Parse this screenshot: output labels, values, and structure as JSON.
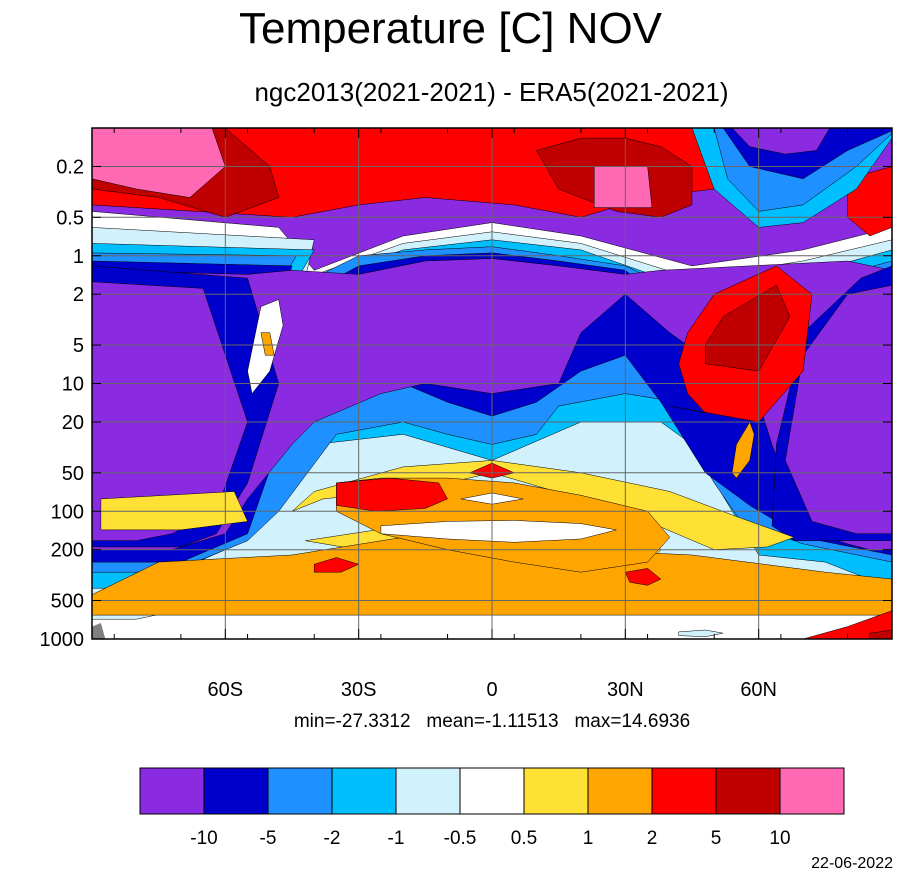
{
  "title": "Temperature [C] NOV",
  "subtitle": "ngc2013(2021-2021) - ERA5(2021-2021)",
  "stats": {
    "min_label": "min=-27.3312",
    "mean_label": "mean=-1.11513",
    "max_label": "max=14.6936"
  },
  "date_stamp": "22-06-2022",
  "chart_data": {
    "type": "heatmap",
    "y_scale": "log",
    "y_reversed": true,
    "xlim": [
      -90,
      90
    ],
    "ylim": [
      1000,
      0.1
    ],
    "x_ticks": [
      {
        "value": -60,
        "label": "60S"
      },
      {
        "value": -30,
        "label": "30S"
      },
      {
        "value": 0,
        "label": "0"
      },
      {
        "value": 30,
        "label": "30N"
      },
      {
        "value": 60,
        "label": "60N"
      }
    ],
    "y_ticks": [
      {
        "value": 0.2,
        "label": "0.2"
      },
      {
        "value": 0.5,
        "label": "0.5"
      },
      {
        "value": 1,
        "label": "1"
      },
      {
        "value": 2,
        "label": "2"
      },
      {
        "value": 5,
        "label": "5"
      },
      {
        "value": 10,
        "label": "10"
      },
      {
        "value": 20,
        "label": "20"
      },
      {
        "value": 50,
        "label": "50"
      },
      {
        "value": 100,
        "label": "100"
      },
      {
        "value": 200,
        "label": "200"
      },
      {
        "value": 500,
        "label": "500"
      },
      {
        "value": 1000,
        "label": "1000"
      }
    ],
    "grid": true,
    "missing_color": "#808080",
    "colorbar": {
      "placement": "bottom",
      "colors": [
        "#8a2be2",
        "#0000cd",
        "#1e90ff",
        "#00bfff",
        "#d1f2fd",
        "#ffffff",
        "#ffe135",
        "#ffa500",
        "#ff0000",
        "#c00000",
        "#ff69b4"
      ],
      "levels": [
        "-10",
        "-5",
        "-2",
        "-1",
        "-0.5",
        "0.5",
        "1",
        "2",
        "5",
        "10"
      ]
    },
    "regions": [
      {
        "level": 5,
        "lat": [
          -90,
          -48,
          -40,
          -20,
          0,
          20,
          45,
          70,
          90,
          90,
          -90
        ],
        "p": [
          0.45,
          0.6,
          1.3,
          0.7,
          0.55,
          0.7,
          1.2,
          0.9,
          0.6,
          1000,
          1000
        ]
      },
      {
        "level": 4,
        "lat": [
          -90,
          -40,
          -42,
          -20,
          0,
          20,
          45,
          70,
          90,
          90,
          75,
          60,
          38,
          20,
          0,
          -20,
          -40,
          -60,
          -80,
          -90
        ],
        "p": [
          0.6,
          0.75,
          1.5,
          0.8,
          0.65,
          0.8,
          1.5,
          1.1,
          0.75,
          600,
          400,
          300,
          250,
          200,
          150,
          160,
          300,
          500,
          700,
          700
        ]
      },
      {
        "level": 3,
        "lat": [
          -90,
          -40,
          -45,
          -20,
          0,
          20,
          45,
          70,
          90,
          90,
          75,
          60,
          45,
          38,
          20,
          0,
          -20,
          -40,
          -60,
          -80,
          -90
        ],
        "p": [
          0.8,
          0.9,
          1.8,
          0.9,
          0.75,
          0.9,
          1.8,
          1.4,
          0.9,
          400,
          250,
          220,
          30,
          20,
          20,
          40,
          25,
          30,
          200,
          400,
          400
        ]
      },
      {
        "level": 2,
        "lat": [
          -90,
          -44,
          -50,
          -30,
          -15,
          0,
          15,
          30,
          46,
          70,
          90,
          90,
          70,
          56,
          50,
          45,
          42,
          30,
          15,
          10,
          0,
          -10,
          -20,
          -35,
          -48,
          -55,
          -68,
          -80,
          -90
        ],
        "p": [
          0.95,
          1.0,
          2.2,
          1.0,
          0.9,
          0.85,
          1.0,
          1.2,
          2.2,
          1.7,
          1.1,
          250,
          180,
          120,
          60,
          30,
          14,
          12,
          15,
          25,
          30,
          25,
          20,
          25,
          100,
          170,
          260,
          300,
          300
        ]
      },
      {
        "level": 1,
        "lat": [
          -90,
          -45,
          -48,
          -30,
          -15,
          0,
          15,
          30,
          42,
          75,
          90,
          90,
          70,
          58,
          48,
          38,
          30,
          20,
          10,
          0,
          -10,
          -20,
          -35,
          -48,
          -55,
          -70,
          -90
        ],
        "p": [
          1.1,
          1.2,
          2.6,
          1.2,
          1.0,
          0.95,
          1.1,
          1.3,
          2.8,
          2.2,
          1.3,
          220,
          160,
          90,
          50,
          14,
          6,
          8,
          14,
          18,
          14,
          10,
          8,
          30,
          150,
          250,
          250
        ]
      },
      {
        "level": 0,
        "lat": [
          -90,
          -55,
          -45,
          -30,
          -15,
          0,
          15,
          30,
          38,
          80,
          90,
          90,
          85,
          80,
          70,
          63,
          60,
          52,
          40,
          30,
          20,
          15,
          0,
          -15,
          -25,
          -40,
          -45,
          -55,
          -60,
          -72,
          -90
        ],
        "p": [
          1.3,
          1.4,
          1.3,
          1.4,
          1.1,
          1.05,
          1.2,
          1.4,
          1.3,
          1.1,
          1.3,
          200,
          200,
          180,
          140,
          30,
          14,
          8,
          4,
          2,
          4,
          10,
          12,
          10,
          12,
          20,
          30,
          80,
          150,
          200,
          200
        ]
      },
      {
        "level": 1,
        "lat": [
          -90,
          -55,
          -48,
          -55,
          -62,
          -70,
          -90
        ],
        "p": [
          1.2,
          1.5,
          10,
          60,
          150,
          190,
          190
        ]
      },
      {
        "level": 1,
        "lat": [
          90,
          83,
          70,
          64,
          63,
          68,
          80,
          90
        ],
        "p": [
          1.2,
          1.5,
          4,
          30,
          130,
          170,
          170,
          170
        ]
      },
      {
        "level": 0,
        "lat": [
          -90,
          -65,
          -55,
          -62,
          -72,
          -80,
          -90
        ],
        "p": [
          1.6,
          1.8,
          20,
          100,
          150,
          170,
          170
        ]
      },
      {
        "level": 0,
        "lat": [
          90,
          80,
          70,
          66,
          72,
          82,
          90
        ],
        "p": [
          1.7,
          2.0,
          6,
          40,
          120,
          150,
          150
        ]
      },
      {
        "level": 6,
        "lat": [
          -88,
          -58,
          -55,
          -70,
          -88
        ],
        "p": [
          80,
          70,
          120,
          140,
          140
        ]
      },
      {
        "level": 6,
        "lat": [
          -42,
          -20,
          -8,
          10,
          25,
          34,
          38,
          35,
          20,
          8,
          -5,
          -20,
          -30,
          -42
        ],
        "p": [
          170,
          130,
          90,
          95,
          110,
          150,
          200,
          260,
          280,
          300,
          250,
          220,
          200,
          170
        ]
      },
      {
        "level": 6,
        "lat": [
          -45,
          -38,
          -30,
          -20,
          -10,
          0,
          20,
          35,
          50,
          62,
          68,
          55,
          40,
          20,
          0,
          -20,
          -40
        ],
        "p": [
          100,
          80,
          75,
          70,
          60,
          50,
          80,
          120,
          200,
          190,
          160,
          110,
          70,
          50,
          40,
          45,
          70
        ]
      },
      {
        "level": 7,
        "lat": [
          -75,
          -45,
          -20,
          0,
          20,
          45,
          75,
          90,
          90,
          -90,
          -90
        ],
        "p": [
          250,
          220,
          160,
          160,
          200,
          220,
          300,
          340,
          650,
          650,
          450
        ]
      },
      {
        "level": 7,
        "lat": [
          -35,
          -25,
          -10,
          5,
          20,
          35,
          40,
          35,
          20,
          5,
          -10,
          -25,
          -35
        ],
        "p": [
          60,
          55,
          55,
          60,
          75,
          100,
          160,
          250,
          300,
          250,
          200,
          150,
          100
        ]
      },
      {
        "level": 8,
        "lat": [
          -35,
          -23,
          -12,
          -10,
          -15,
          -26,
          -35
        ],
        "p": [
          60,
          55,
          60,
          80,
          95,
          100,
          90
        ]
      },
      {
        "level": 8,
        "lat": [
          -40,
          -35,
          -30,
          -34,
          -40
        ],
        "p": [
          260,
          230,
          260,
          300,
          300
        ]
      },
      {
        "level": 8,
        "lat": [
          30,
          35,
          38,
          35,
          31
        ],
        "p": [
          300,
          280,
          340,
          380,
          360
        ]
      },
      {
        "level": 8,
        "lat": [
          -5,
          0,
          5,
          0
        ],
        "p": [
          50,
          42,
          50,
          55
        ]
      },
      {
        "level": 5,
        "lat": [
          -7,
          0,
          7,
          0
        ],
        "p": [
          80,
          72,
          80,
          88
        ]
      },
      {
        "level": 5,
        "lat": [
          -25,
          -10,
          5,
          20,
          28,
          20,
          5,
          -10,
          -25
        ],
        "p": [
          130,
          120,
          118,
          125,
          140,
          165,
          175,
          165,
          150
        ]
      },
      {
        "level": 8,
        "lat": [
          70,
          80,
          90,
          90,
          75,
          68
        ],
        "p": [
          1000,
          800,
          600,
          1000,
          1000,
          1000
        ]
      },
      {
        "level": 9,
        "lat": [
          85,
          90,
          90,
          85
        ],
        "p": [
          900,
          850,
          1000,
          1000
        ]
      },
      {
        "level": 4,
        "lat": [
          42,
          48,
          52,
          48,
          42
        ],
        "p": [
          880,
          850,
          900,
          960,
          940
        ]
      },
      {
        "level": 8,
        "lat": [
          -90,
          -45,
          -15,
          10,
          25,
          38,
          45,
          50,
          50,
          35,
          20,
          5,
          -15,
          -30,
          -45,
          -90
        ],
        "p": [
          0.1,
          0.1,
          0.1,
          0.1,
          0.1,
          0.1,
          0.1,
          0.15,
          0.3,
          0.35,
          0.5,
          0.4,
          0.35,
          0.4,
          0.5,
          0.4
        ]
      },
      {
        "level": 8,
        "lat": [
          80,
          90,
          90,
          85,
          80
        ],
        "p": [
          0.25,
          0.2,
          0.6,
          0.7,
          0.5
        ]
      },
      {
        "level": 9,
        "lat": [
          -90,
          -60,
          -50,
          -48,
          -60,
          -75,
          -90
        ],
        "p": [
          0.1,
          0.1,
          0.2,
          0.35,
          0.5,
          0.35,
          0.3
        ]
      },
      {
        "level": 9,
        "lat": [
          10,
          20,
          30,
          38,
          45,
          45,
          38,
          28,
          15
        ],
        "p": [
          0.15,
          0.12,
          0.12,
          0.14,
          0.2,
          0.4,
          0.5,
          0.45,
          0.3
        ]
      },
      {
        "level": 10,
        "lat": [
          -90,
          -63,
          -60,
          -68,
          -80,
          -90
        ],
        "p": [
          0.1,
          0.1,
          0.2,
          0.35,
          0.3,
          0.25
        ]
      },
      {
        "level": 10,
        "lat": [
          23,
          35,
          36,
          23
        ],
        "p": [
          0.2,
          0.2,
          0.42,
          0.42
        ]
      },
      {
        "level": 3,
        "lat": [
          45,
          55,
          75,
          90,
          90,
          82,
          70,
          60,
          50
        ],
        "p": [
          0.1,
          0.1,
          0.1,
          0.1,
          0.12,
          0.3,
          0.55,
          0.6,
          0.3
        ]
      },
      {
        "level": 2,
        "lat": [
          50,
          55,
          75,
          90,
          90,
          82,
          70,
          60,
          53
        ],
        "p": [
          0.1,
          0.1,
          0.1,
          0.1,
          0.11,
          0.2,
          0.4,
          0.45,
          0.25
        ]
      },
      {
        "level": 1,
        "lat": [
          52,
          60,
          75,
          90,
          90,
          80,
          70,
          58
        ],
        "p": [
          0.1,
          0.1,
          0.1,
          0.1,
          0.105,
          0.15,
          0.25,
          0.2
        ]
      },
      {
        "level": 0,
        "lat": [
          54,
          76,
          73,
          66,
          58
        ],
        "p": [
          0.1,
          0.1,
          0.15,
          0.16,
          0.14
        ]
      },
      {
        "level": 8,
        "lat": [
          40,
          60,
          70,
          72,
          64,
          50,
          44,
          42,
          44,
          48
        ],
        "p": [
          15,
          20,
          8,
          2,
          1.2,
          2,
          4,
          7,
          12,
          17
        ]
      },
      {
        "level": 9,
        "lat": [
          48,
          60,
          67,
          64,
          52,
          48
        ],
        "p": [
          7,
          8,
          3,
          1.7,
          3,
          5
        ]
      },
      {
        "level": 7,
        "lat": [
          54,
          55,
          58,
          59,
          58,
          55
        ],
        "p": [
          50,
          30,
          20,
          25,
          40,
          55
        ]
      },
      {
        "level": 5,
        "lat": [
          -52,
          -48,
          -47,
          -50,
          -54,
          -55
        ],
        "p": [
          2.5,
          2.2,
          3.5,
          8,
          12,
          8
        ]
      },
      {
        "level": 7,
        "lat": [
          -52,
          -50,
          -49,
          -51
        ],
        "p": [
          4,
          4,
          6,
          6
        ]
      }
    ]
  }
}
